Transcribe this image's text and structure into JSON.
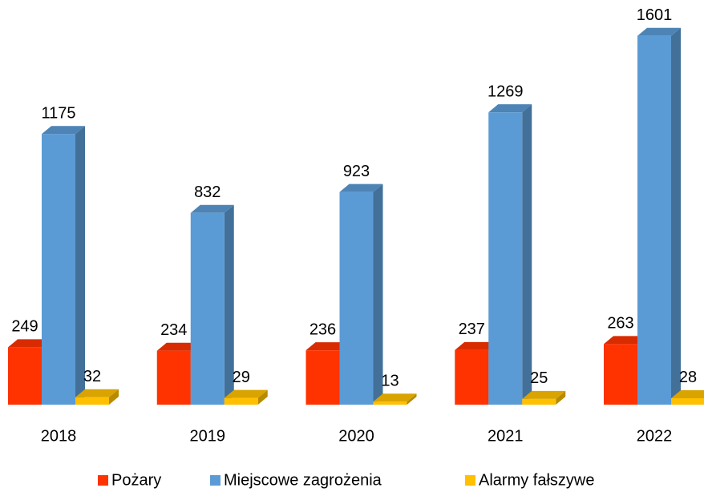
{
  "chart_data": {
    "type": "bar3d",
    "categories": [
      "2018",
      "2019",
      "2020",
      "2021",
      "2022"
    ],
    "series": [
      {
        "name": "Pożary",
        "color": "#ff3300",
        "values": [
          249,
          234,
          236,
          237,
          263
        ]
      },
      {
        "name": "Miejscowe zagrożenia",
        "color": "#5b9bd5",
        "values": [
          1175,
          832,
          923,
          1269,
          1601
        ]
      },
      {
        "name": "Alarmy fałszywe",
        "color": "#ffc000",
        "values": [
          32,
          29,
          13,
          25,
          28
        ]
      }
    ],
    "legend": "bottom"
  }
}
